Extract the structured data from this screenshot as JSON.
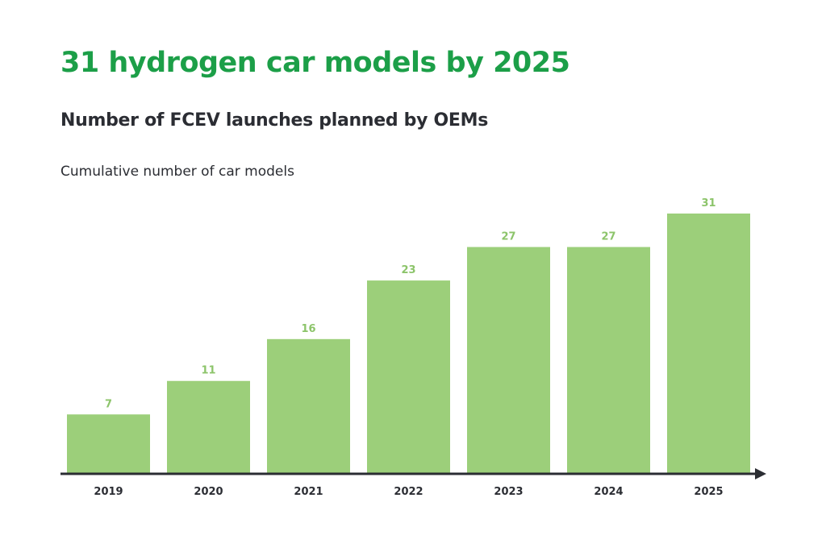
{
  "chart_data": {
    "type": "bar",
    "title": "31 hydrogen car models by 2025",
    "subtitle": "Number of FCEV launches planned by OEMs",
    "xlabel": "",
    "ylabel": "Cumulative number of car models",
    "categories": [
      "2019",
      "2020",
      "2021",
      "2022",
      "2023",
      "2024",
      "2025"
    ],
    "values": [
      7,
      11,
      16,
      23,
      27,
      27,
      31
    ],
    "ylim": [
      0,
      31
    ],
    "grid": false,
    "legend": "none",
    "data_labels": true,
    "colors": {
      "bar": "#9ccf7a",
      "title": "#1c9f48",
      "text": "#2b2d33",
      "axis": "#2b2d33",
      "data_label": "#8cc46a"
    }
  }
}
